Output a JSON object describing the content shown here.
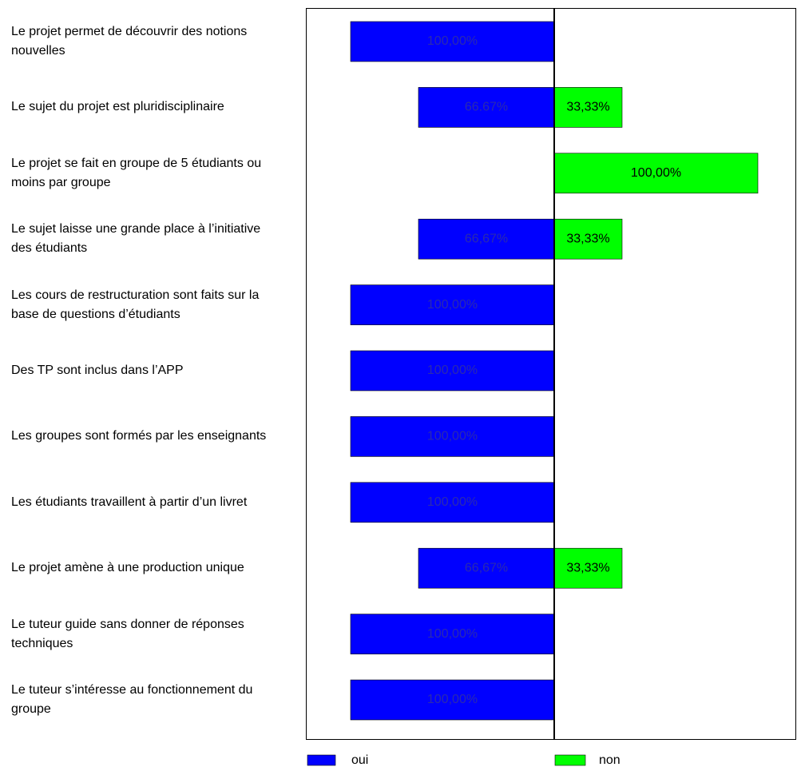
{
  "chart_data": {
    "type": "diverging-bar",
    "categories": [
      "Le projet permet de découvrir des notions nouvelles",
      "Le sujet du projet est pluridisciplinaire",
      "Le projet se fait en groupe de 5 étudiants ou moins par groupe",
      "Le sujet laisse une grande place à l’initiative des étudiants",
      "Les cours de restructuration sont faits sur la base de questions d’étudiants",
      "Des TP sont inclus dans l’APP",
      "Les groupes sont formés par les enseignants",
      "Les étudiants travaillent à partir d’un livret",
      "Le projet amène à une production unique",
      "Le tuteur guide sans donner de réponses techniques",
      "Le tuteur s’intéresse au fonctionnement du groupe"
    ],
    "series": [
      {
        "name": "oui",
        "color": "#0000ff",
        "label_color": "#2a2ab0",
        "values": [
          100,
          66.67,
          null,
          66.67,
          100,
          100,
          100,
          100,
          66.67,
          100,
          100
        ],
        "value_labels": [
          "100,00%",
          "66.67%",
          null,
          "66,67%",
          "100,00%",
          "100,00%",
          "100,00%",
          "100,00%",
          "66,67%",
          "100,00%",
          "100,00%"
        ]
      },
      {
        "name": "non",
        "color": "#00ff00",
        "label_color": "#000000",
        "values": [
          null,
          33.33,
          100,
          33.33,
          null,
          null,
          null,
          null,
          33.33,
          null,
          null
        ],
        "value_labels": [
          null,
          "33,33%",
          "100,00%",
          "33,33%",
          null,
          null,
          null,
          null,
          "33,33%",
          null,
          null
        ]
      }
    ]
  }
}
